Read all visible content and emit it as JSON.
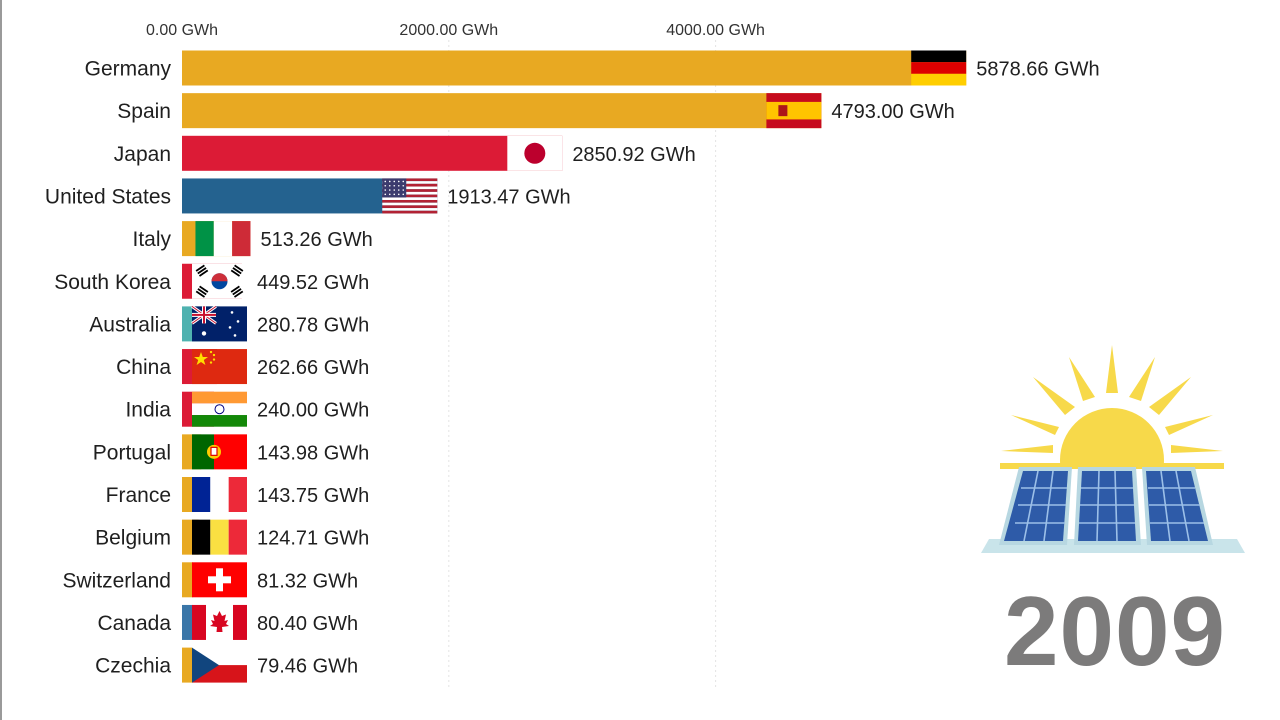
{
  "year_label": "2009",
  "chart_data": {
    "type": "bar",
    "orientation": "horizontal",
    "title": "",
    "xlabel": "",
    "ylabel": "",
    "unit": "GWh",
    "xlim": [
      0,
      6000
    ],
    "x_ticks": [
      0,
      2000,
      4000
    ],
    "x_tick_labels": [
      "0.00 GWh",
      "2000.00 GWh",
      "4000.00 GWh"
    ],
    "grid": true,
    "legend": "none",
    "categories": [
      "Germany",
      "Spain",
      "Japan",
      "United States",
      "Italy",
      "South Korea",
      "Australia",
      "China",
      "India",
      "Portugal",
      "France",
      "Belgium",
      "Switzerland",
      "Canada",
      "Czechia"
    ],
    "values": [
      5878.66,
      4793.0,
      2850.92,
      1913.47,
      513.26,
      449.52,
      280.78,
      262.66,
      240.0,
      143.98,
      143.75,
      124.71,
      81.32,
      80.4,
      79.46
    ],
    "value_labels": [
      "5878.66 GWh",
      "4793.00 GWh",
      "2850.92 GWh",
      "1913.47 GWh",
      "513.26 GWh",
      "449.52 GWh",
      "280.78 GWh",
      "262.66 GWh",
      "240.00 GWh",
      "143.98 GWh",
      "143.75 GWh",
      "124.71 GWh",
      "81.32 GWh",
      "80.40 GWh",
      "79.46 GWh"
    ],
    "bar_colors": [
      "#e8a922",
      "#e8a922",
      "#dc1b36",
      "#24628f",
      "#e8a922",
      "#dc1b36",
      "#4fb2b0",
      "#dc1b36",
      "#dc1b36",
      "#e8a922",
      "#e8a922",
      "#e8a922",
      "#e8a922",
      "#3a76a8",
      "#e8a922"
    ],
    "flags": [
      "germany-flag",
      "spain-flag",
      "japan-flag",
      "united-states-flag",
      "italy-flag",
      "south-korea-flag",
      "australia-flag",
      "china-flag",
      "india-flag",
      "portugal-flag",
      "france-flag",
      "belgium-flag",
      "switzerland-flag",
      "canada-flag",
      "czechia-flag"
    ]
  }
}
